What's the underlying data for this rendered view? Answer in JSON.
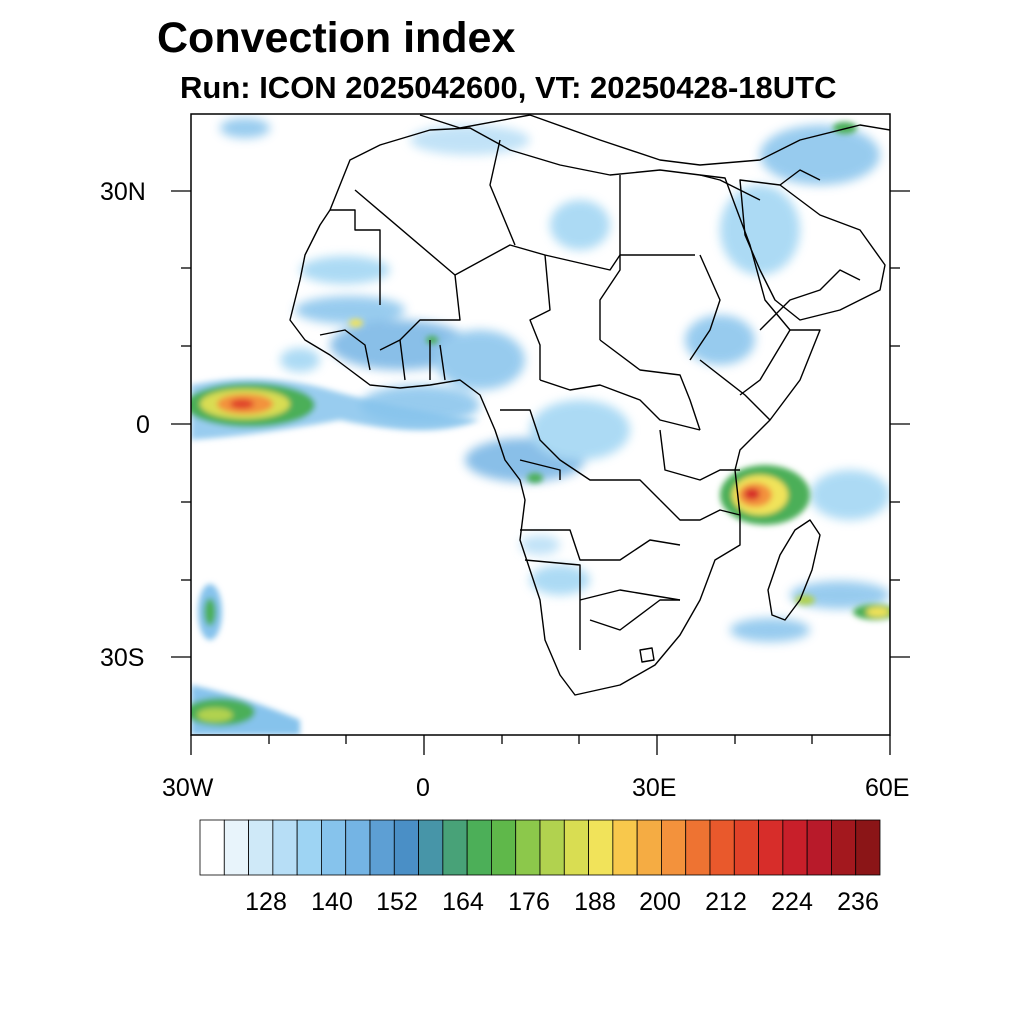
{
  "title": "Convection index",
  "subtitle": "Run: ICON 2025042600,  VT: 20250428-18UTC",
  "axes": {
    "lon_labels": [
      "30W",
      "0",
      "30E",
      "60E"
    ],
    "lat_labels": [
      "30N",
      "0",
      "30S"
    ]
  },
  "colorbar": {
    "labels": [
      "128",
      "140",
      "152",
      "164",
      "176",
      "188",
      "200",
      "212",
      "224",
      "236"
    ],
    "colors": [
      "#ffffff",
      "#e8f4fb",
      "#cfe9f8",
      "#b7def6",
      "#9ed4f3",
      "#86c3ec",
      "#74b4e4",
      "#5d9fd4",
      "#4a8fc6",
      "#4795a8",
      "#48a278",
      "#4caf58",
      "#5fb84a",
      "#8cc84b",
      "#b1d24f",
      "#d9dd52",
      "#f1e35a",
      "#f8c84c",
      "#f5ac43",
      "#f3923c",
      "#ee7332",
      "#e9592c",
      "#e04229",
      "#d72d2a",
      "#c81f2a",
      "#b81a2a",
      "#a3181e",
      "#8b1517"
    ]
  },
  "map_data": {
    "domain": {
      "lon": [
        -30,
        60
      ],
      "lat": [
        -40,
        40
      ]
    },
    "features": [
      {
        "name": "gulf-of-guinea-convection",
        "lon": -25,
        "lat": 2,
        "level": 212
      },
      {
        "name": "tanzania-convection",
        "lon": 43,
        "lat": -9,
        "level": 210
      },
      {
        "name": "madagascar-east-convection",
        "lon": 58,
        "lat": -24,
        "level": 185
      },
      {
        "name": "south-atlantic-convection",
        "lon": -28,
        "lat": -24,
        "level": 170
      },
      {
        "name": "southwest-atlantic-convection",
        "lon": -28,
        "lat": -37,
        "level": 160
      }
    ]
  }
}
